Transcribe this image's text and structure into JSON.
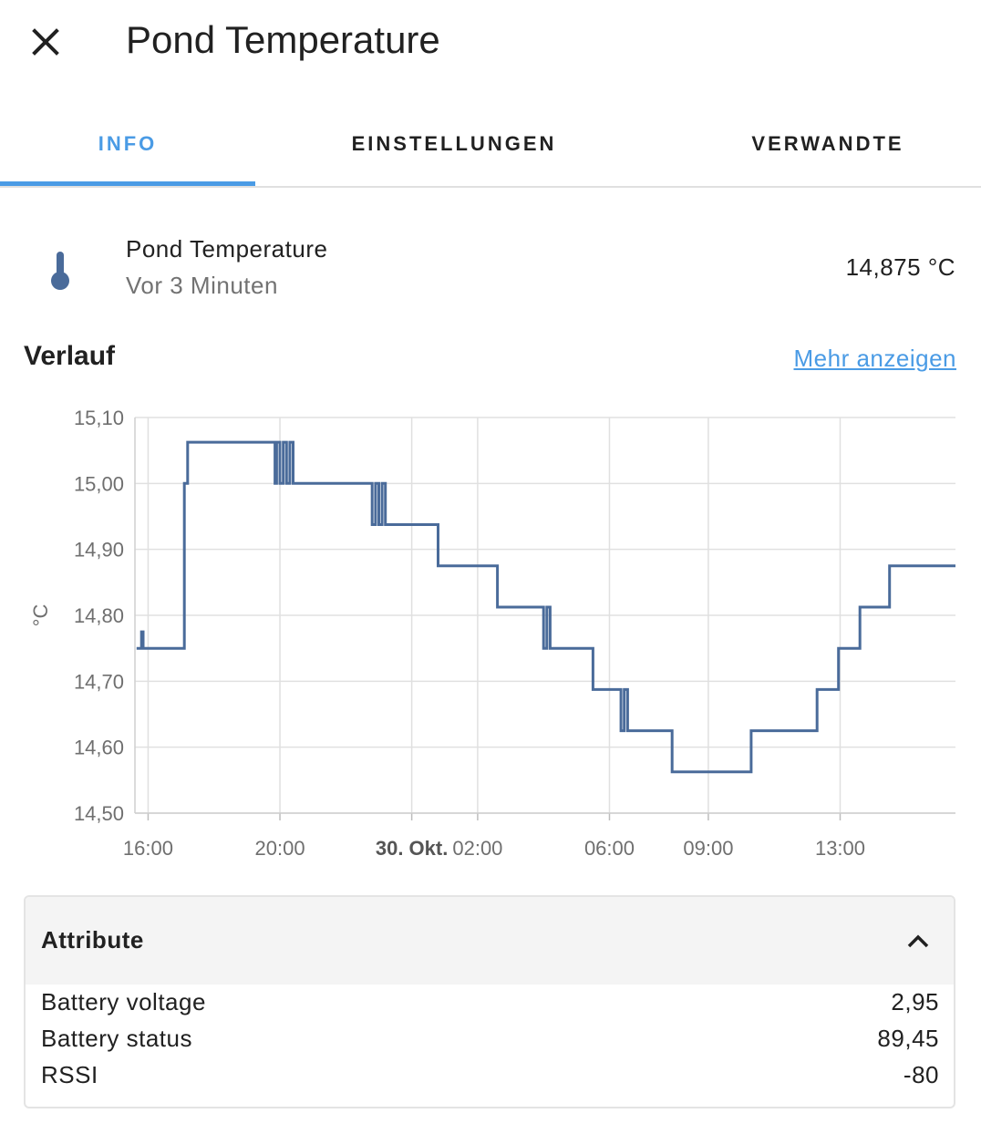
{
  "dialog": {
    "title": "Pond Temperature"
  },
  "tabs": [
    {
      "label": "INFO",
      "active": true
    },
    {
      "label": "EINSTELLUNGEN",
      "active": false
    },
    {
      "label": "VERWANDTE",
      "active": false
    }
  ],
  "entity": {
    "icon": "thermometer-icon",
    "name": "Pond Temperature",
    "last_changed": "Vor 3 Minuten",
    "state": "14,875 °C"
  },
  "history": {
    "title": "Verlauf",
    "more_link": "Mehr anzeigen"
  },
  "chart_data": {
    "type": "line",
    "step": true,
    "ylabel": "°C",
    "ylim": [
      14.5,
      15.1
    ],
    "y_ticks": [
      "15,10",
      "15,00",
      "14,90",
      "14,80",
      "14,70",
      "14,60",
      "14,50"
    ],
    "x_ticks": [
      {
        "label": "16:00",
        "hour": 16,
        "bold": false
      },
      {
        "label": "20:00",
        "hour": 20,
        "bold": false
      },
      {
        "label": "30. Okt.",
        "hour": 24,
        "bold": true
      },
      {
        "label": "02:00",
        "hour": 26,
        "bold": false
      },
      {
        "label": "06:00",
        "hour": 30,
        "bold": false
      },
      {
        "label": "09:00",
        "hour": 33,
        "bold": false
      },
      {
        "label": "13:00",
        "hour": 37,
        "bold": false
      }
    ],
    "xlim_hours": [
      15.6,
      40.5
    ],
    "grid": true,
    "color": "#4a6b9a",
    "series": [
      {
        "points": [
          [
            15.65,
            14.75
          ],
          [
            15.8,
            14.775
          ],
          [
            15.85,
            14.75
          ],
          [
            17.1,
            15.0
          ],
          [
            17.2,
            15.0625
          ],
          [
            19.8,
            15.0625
          ],
          [
            19.85,
            15.0
          ],
          [
            19.9,
            15.0625
          ],
          [
            20.0,
            15.0
          ],
          [
            20.1,
            15.0625
          ],
          [
            20.2,
            15.0
          ],
          [
            20.3,
            15.0625
          ],
          [
            20.4,
            15.0
          ],
          [
            22.7,
            15.0
          ],
          [
            22.8,
            14.9375
          ],
          [
            22.9,
            15.0
          ],
          [
            23.0,
            14.9375
          ],
          [
            23.1,
            15.0
          ],
          [
            23.2,
            14.9375
          ],
          [
            24.8,
            14.9375
          ],
          [
            24.8,
            14.875
          ],
          [
            26.6,
            14.875
          ],
          [
            26.6,
            14.8125
          ],
          [
            27.9,
            14.8125
          ],
          [
            28.0,
            14.75
          ],
          [
            28.1,
            14.8125
          ],
          [
            28.2,
            14.75
          ],
          [
            29.5,
            14.75
          ],
          [
            29.5,
            14.6875
          ],
          [
            30.3,
            14.6875
          ],
          [
            30.35,
            14.625
          ],
          [
            30.45,
            14.6875
          ],
          [
            30.55,
            14.625
          ],
          [
            31.9,
            14.625
          ],
          [
            31.9,
            14.5625
          ],
          [
            34.3,
            14.5625
          ],
          [
            34.3,
            14.625
          ],
          [
            36.3,
            14.625
          ],
          [
            36.3,
            14.6875
          ],
          [
            36.95,
            14.6875
          ],
          [
            36.95,
            14.75
          ],
          [
            37.6,
            14.75
          ],
          [
            37.6,
            14.8125
          ],
          [
            38.5,
            14.8125
          ],
          [
            38.5,
            14.875
          ],
          [
            40.5,
            14.875
          ]
        ]
      }
    ]
  },
  "attributes": {
    "title": "Attribute",
    "expanded": true,
    "rows": [
      {
        "key": "Battery voltage",
        "value": "2,95"
      },
      {
        "key": "Battery status",
        "value": "89,45"
      },
      {
        "key": "RSSI",
        "value": "-80"
      }
    ]
  }
}
